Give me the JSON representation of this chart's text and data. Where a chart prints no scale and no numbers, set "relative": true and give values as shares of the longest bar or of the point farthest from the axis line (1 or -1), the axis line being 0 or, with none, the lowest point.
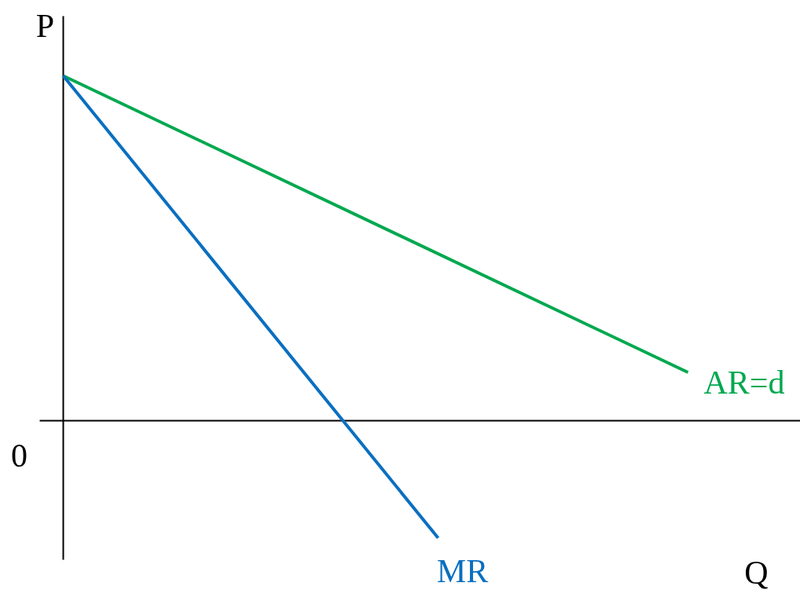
{
  "chart_data": {
    "type": "line",
    "relative": true,
    "xlabel": "Q",
    "ylabel": "P",
    "categories": [
      null,
      null,
      null,
      null,
      null,
      null,
      null,
      null,
      null,
      null,
      null
    ],
    "series": [
      {
        "name": "AR=d",
        "color": "#00a84f",
        "values": [
          1,
          null,
          null,
          null,
          null,
          null,
          null,
          null,
          null,
          null,
          0.14
        ]
      },
      {
        "name": "MR",
        "color": "#0a6fc0",
        "values": [
          1,
          null,
          null,
          null,
          null,
          null,
          -0.34,
          null,
          null,
          null,
          null
        ]
      }
    ],
    "annotations": [
      "0"
    ]
  }
}
